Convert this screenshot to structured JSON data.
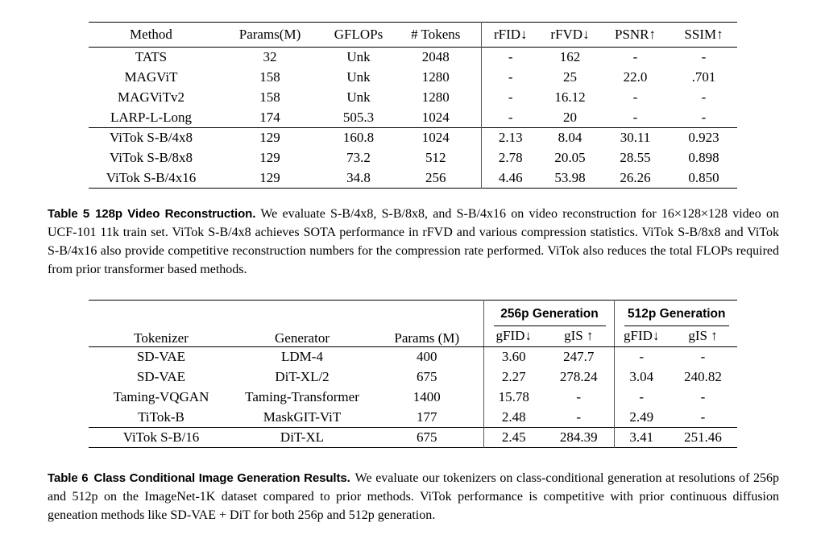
{
  "page": {
    "background": "#ffffff",
    "text_color": "#000000",
    "rule_color": "#000000"
  },
  "table5": {
    "headers": [
      "Method",
      "Params(M)",
      "GFLOPs",
      "# Tokens",
      "rFID↓",
      "rFVD↓",
      "PSNR↑",
      "SSIM↑"
    ],
    "baseline_rows": [
      [
        "TATS",
        "32",
        "Unk",
        "2048",
        "-",
        "162",
        "-",
        "-"
      ],
      [
        "MAGViT",
        "158",
        "Unk",
        "1280",
        "-",
        "25",
        "22.0",
        ".701"
      ],
      [
        "MAGViTv2",
        "158",
        "Unk",
        "1280",
        "-",
        "16.12",
        "-",
        "-"
      ],
      [
        "LARP-L-Long",
        "174",
        "505.3",
        "1024",
        "-",
        "20",
        "-",
        "-"
      ]
    ],
    "vitok_rows": [
      [
        "ViTok S-B/4x8",
        "129",
        "160.8",
        "1024",
        "2.13",
        "8.04",
        "30.11",
        "0.923"
      ],
      [
        "ViTok S-B/8x8",
        "129",
        "73.2",
        "512",
        "2.78",
        "20.05",
        "28.55",
        "0.898"
      ],
      [
        "ViTok S-B/4x16",
        "129",
        "34.8",
        "256",
        "4.46",
        "53.98",
        "26.26",
        "0.850"
      ]
    ],
    "caption": {
      "label": "Table 5",
      "title": "128p Video Reconstruction.",
      "body": "We evaluate S-B/4x8, S-B/8x8, and S-B/4x16 on video reconstruction for 16×128×128 video on UCF-101 11k train set. ViTok S-B/4x8 achieves SOTA performance in rFVD and various compression statistics. ViTok S-B/8x8 and ViTok S-B/4x16 also provide competitive reconstruction numbers for the compression rate performed. ViTok also reduces the total FLOPs required from prior transformer based methods."
    }
  },
  "table6": {
    "headers_left": [
      "Tokenizer",
      "Generator",
      "Params (M)"
    ],
    "groups": [
      {
        "label": "256p Generation",
        "sub": [
          "gFID↓",
          "gIS ↑"
        ]
      },
      {
        "label": "512p Generation",
        "sub": [
          "gFID↓",
          "gIS ↑"
        ]
      }
    ],
    "baseline_rows": [
      [
        "SD-VAE",
        "LDM-4",
        "400",
        "3.60",
        "247.7",
        "-",
        "-"
      ],
      [
        "SD-VAE",
        "DiT-XL/2",
        "675",
        "2.27",
        "278.24",
        "3.04",
        "240.82"
      ],
      [
        "Taming-VQGAN",
        "Taming-Transformer",
        "1400",
        "15.78",
        "-",
        "-",
        "-"
      ],
      [
        "TiTok-B",
        "MaskGIT-ViT",
        "177",
        "2.48",
        "-",
        "2.49",
        "-"
      ]
    ],
    "vitok_rows": [
      [
        "ViTok S-B/16",
        "DiT-XL",
        "675",
        "2.45",
        "284.39",
        "3.41",
        "251.46"
      ]
    ],
    "caption": {
      "label": "Table 6",
      "title": "Class Conditional Image Generation Results.",
      "body": "We evaluate our tokenizers on class-conditional generation at resolutions of 256p and 512p on the ImageNet-1K dataset compared to prior methods. ViTok performance is competitive with prior continuous diffusion geneation methods like SD-VAE + DiT for both 256p and 512p generation."
    }
  }
}
